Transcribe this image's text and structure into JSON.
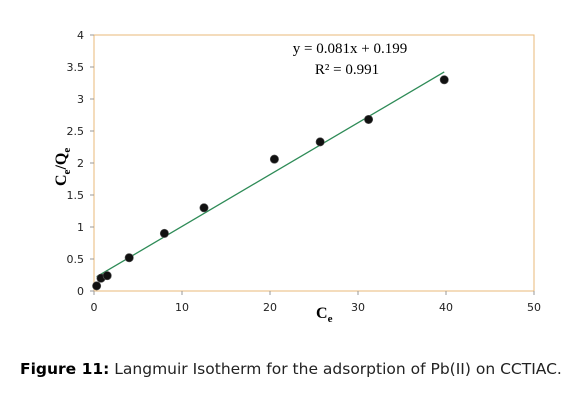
{
  "chart_data": {
    "type": "scatter",
    "points": [
      {
        "x": 0.3,
        "y": 0.08
      },
      {
        "x": 0.8,
        "y": 0.2
      },
      {
        "x": 1.5,
        "y": 0.24
      },
      {
        "x": 4.0,
        "y": 0.52
      },
      {
        "x": 8.0,
        "y": 0.9
      },
      {
        "x": 12.5,
        "y": 1.3
      },
      {
        "x": 20.5,
        "y": 2.06
      },
      {
        "x": 25.7,
        "y": 2.33
      },
      {
        "x": 31.2,
        "y": 2.68
      },
      {
        "x": 39.8,
        "y": 3.3
      }
    ],
    "trendline": {
      "slope": 0.081,
      "intercept": 0.199,
      "x_range": [
        0.3,
        39.8
      ]
    },
    "equation": "y = 0.081x + 0.199",
    "r_squared": "R² = 0.991",
    "xlabel": {
      "main": "C",
      "sub": "e"
    },
    "ylabel": {
      "main": "C",
      "sub1": "e",
      "slash": "/Q",
      "sub2": "e"
    },
    "xlim": [
      0,
      50
    ],
    "ylim": [
      0,
      4
    ],
    "xticks": [
      0,
      10,
      20,
      30,
      40,
      50
    ],
    "yticks": [
      0,
      0.5,
      1,
      1.5,
      2,
      2.5,
      3,
      3.5,
      4
    ],
    "grid": false,
    "colors": {
      "plot_border": "#e8b878",
      "trendline": "#2e8b57",
      "marker": "#111111"
    }
  },
  "caption": {
    "label": "Figure 11:",
    "text": " Langmuir Isotherm for the adsorption of Pb(II) on CCTIAC."
  }
}
